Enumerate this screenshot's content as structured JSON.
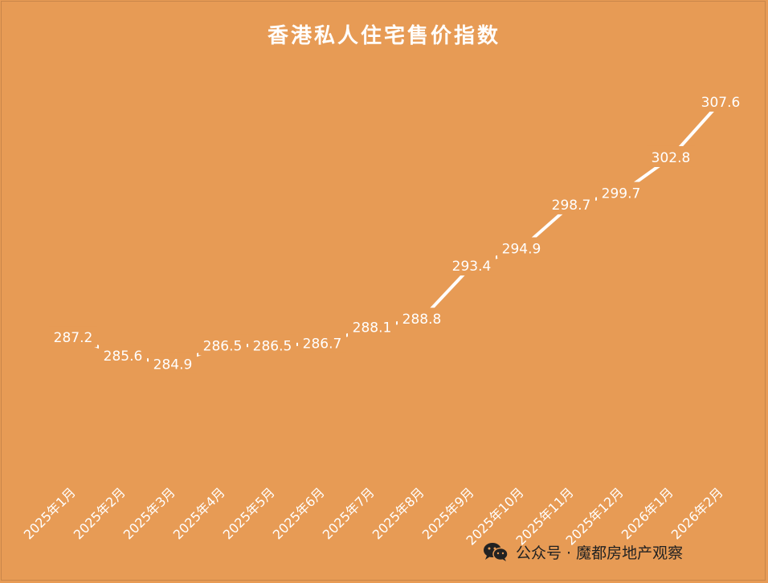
{
  "chart_data": {
    "type": "line",
    "title": "香港私人住宅售价指数",
    "categories": [
      "2025年1月",
      "2025年2月",
      "2025年3月",
      "2025年4月",
      "2025年5月",
      "2025年6月",
      "2025年7月",
      "2025年8月",
      "2025年9月",
      "2025年10月",
      "2025年11月",
      "2025年12月",
      "2026年1月",
      "2026年2月"
    ],
    "values": [
      287.2,
      285.6,
      284.9,
      286.5,
      286.5,
      286.7,
      288.1,
      288.8,
      293.4,
      294.9,
      298.7,
      299.7,
      302.8,
      307.6
    ],
    "value_labels": [
      "287.2",
      "285.6",
      "284.9",
      "286.5",
      "286.5",
      "286.7",
      "288.1",
      "288.8",
      "293.4",
      "294.9",
      "298.7",
      "299.7",
      "302.8",
      "307.6"
    ],
    "ylim": [
      276.5,
      307.6
    ],
    "xlabel": "",
    "ylabel": "",
    "grid": false,
    "legend": "none",
    "colors": {
      "background": "#e79b55",
      "mark": "#ffffff",
      "line": "#ffffff"
    }
  },
  "watermark": {
    "icon": "wechat-icon",
    "text": "公众号 · 魔都房地产观察"
  }
}
